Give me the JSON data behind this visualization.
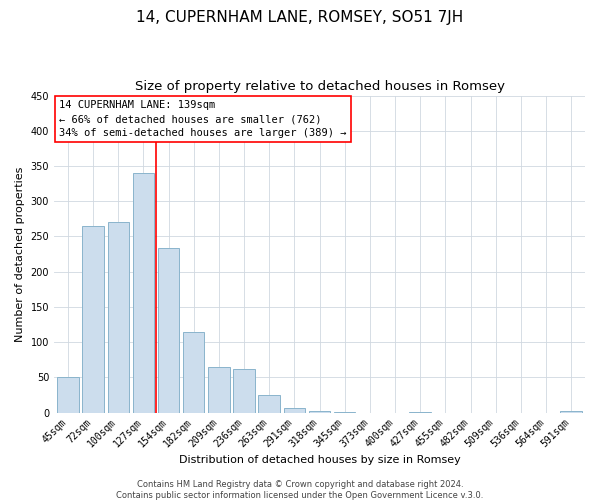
{
  "title": "14, CUPERNHAM LANE, ROMSEY, SO51 7JH",
  "subtitle": "Size of property relative to detached houses in Romsey",
  "xlabel": "Distribution of detached houses by size in Romsey",
  "ylabel": "Number of detached properties",
  "bar_labels": [
    "45sqm",
    "72sqm",
    "100sqm",
    "127sqm",
    "154sqm",
    "182sqm",
    "209sqm",
    "236sqm",
    "263sqm",
    "291sqm",
    "318sqm",
    "345sqm",
    "373sqm",
    "400sqm",
    "427sqm",
    "455sqm",
    "482sqm",
    "509sqm",
    "536sqm",
    "564sqm",
    "591sqm"
  ],
  "bar_values": [
    50,
    265,
    270,
    340,
    233,
    115,
    65,
    62,
    25,
    7,
    2,
    1,
    0,
    0,
    1,
    0,
    0,
    0,
    0,
    0,
    2
  ],
  "bar_color": "#ccdded",
  "bar_edge_color": "#8ab4cc",
  "red_line_index": 3.5,
  "annotation_lines": [
    "14 CUPERNHAM LANE: 139sqm",
    "← 66% of detached houses are smaller (762)",
    "34% of semi-detached houses are larger (389) →"
  ],
  "ylim": [
    0,
    450
  ],
  "yticks": [
    0,
    50,
    100,
    150,
    200,
    250,
    300,
    350,
    400,
    450
  ],
  "footer_line1": "Contains HM Land Registry data © Crown copyright and database right 2024.",
  "footer_line2": "Contains public sector information licensed under the Open Government Licence v.3.0.",
  "title_fontsize": 11,
  "subtitle_fontsize": 9.5,
  "axis_label_fontsize": 8,
  "tick_fontsize": 7,
  "annotation_fontsize": 7.5,
  "footer_fontsize": 6
}
